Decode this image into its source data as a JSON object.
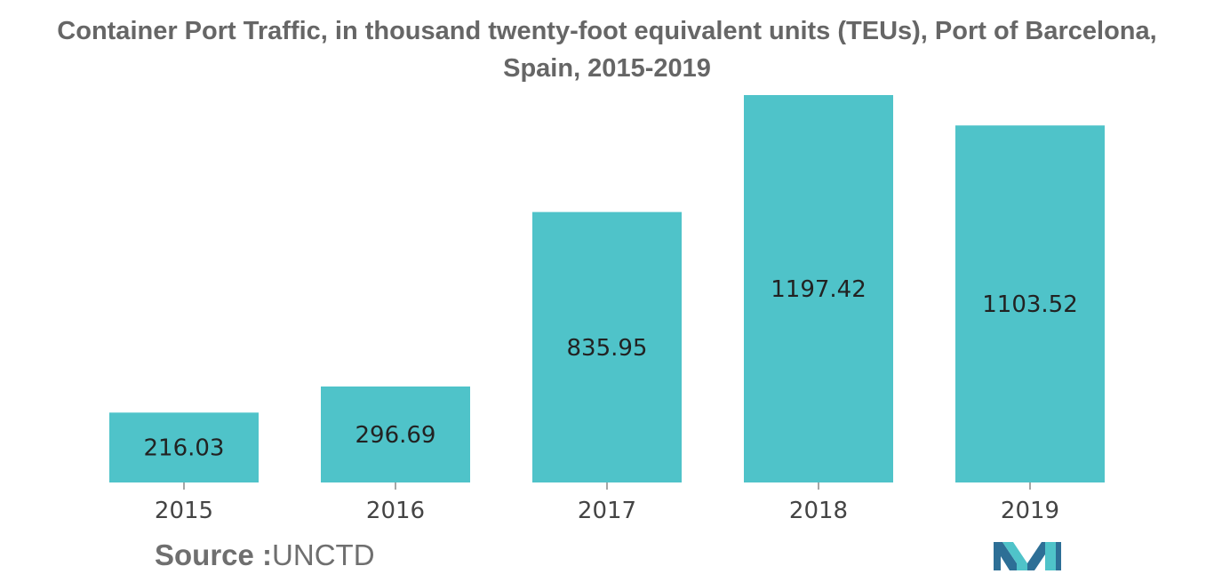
{
  "title": {
    "line1": "Container Port Traffic, in thousand twenty-foot equivalent units (TEUs), Port of Barcelona,",
    "line2": "Spain, 2015-2019"
  },
  "source": {
    "label": "Source :",
    "value": "UNCTD"
  },
  "colors": {
    "bar": "#4fc3c9",
    "label": "#222222",
    "axis_text": "#444444",
    "logo_dark": "#2d6f96",
    "logo_light": "#4fc3c9"
  },
  "chart_data": {
    "type": "bar",
    "title": "Container Port Traffic, in thousand twenty-foot equivalent units (TEUs), Port of Barcelona, Spain, 2015-2019",
    "categories": [
      "2015",
      "2016",
      "2017",
      "2018",
      "2019"
    ],
    "values": [
      216.03,
      296.69,
      835.95,
      1197.42,
      1103.52
    ],
    "value_labels": [
      "216.03",
      "296.69",
      "835.95",
      "1197.42",
      "1103.52"
    ],
    "xlabel": "",
    "ylabel": "",
    "ylim": [
      0,
      1197.42
    ],
    "grid": false,
    "legend": "none"
  }
}
